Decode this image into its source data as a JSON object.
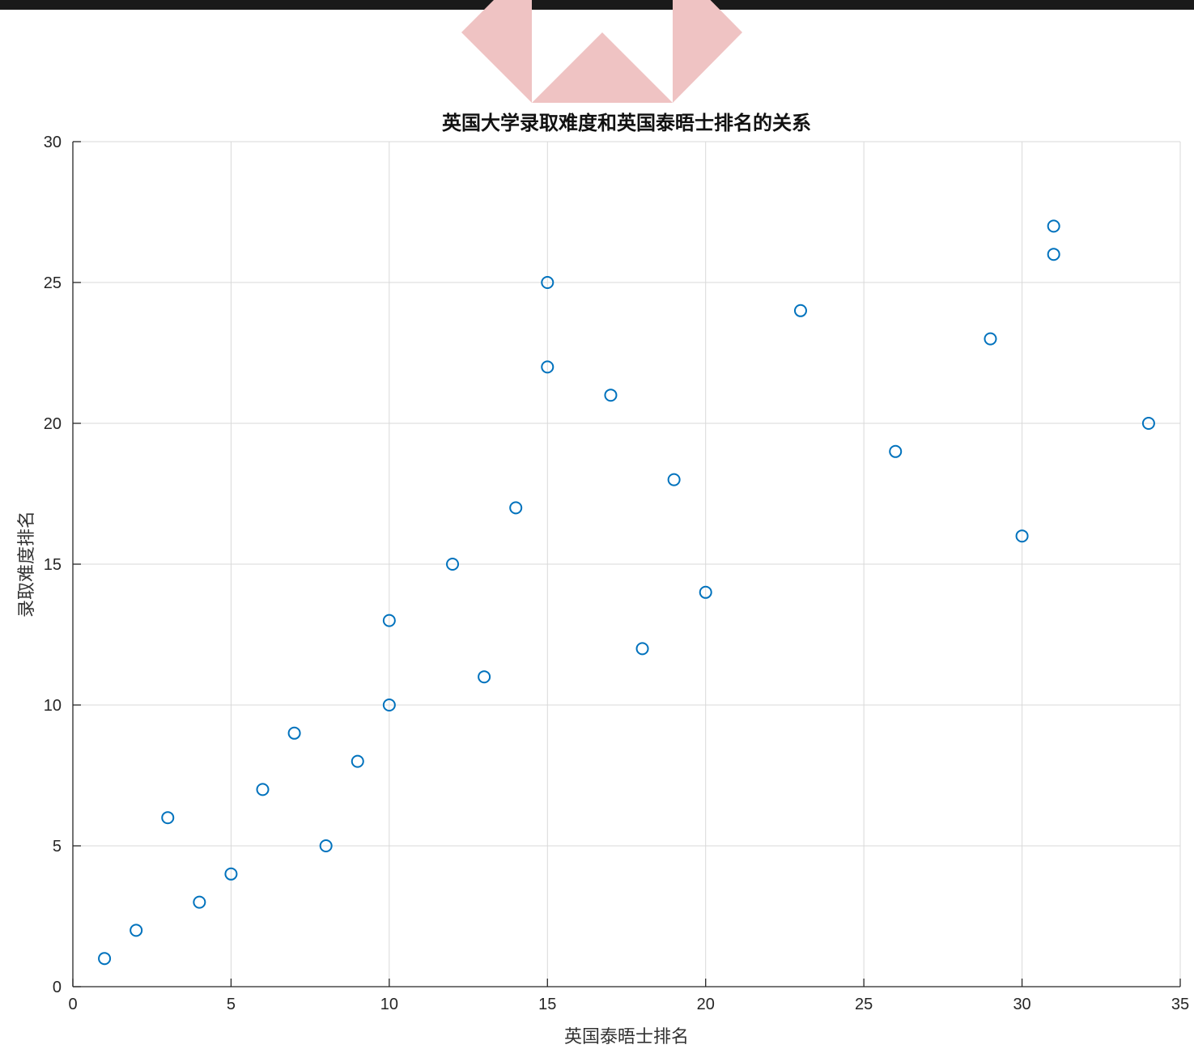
{
  "chart_data": {
    "type": "scatter",
    "title": "英国大学录取难度和英国泰晤士排名的关系",
    "xlabel": "英国泰晤士排名",
    "ylabel": "录取难度排名",
    "xlim": [
      0,
      35
    ],
    "ylim": [
      0,
      30
    ],
    "x_ticks": [
      "0",
      "5",
      "10",
      "15",
      "20",
      "25",
      "30",
      "35"
    ],
    "y_ticks": [
      "0",
      "5",
      "10",
      "15",
      "20",
      "25",
      "30"
    ],
    "grid": true,
    "marker": "circle-open",
    "points": [
      {
        "x": 1,
        "y": 1
      },
      {
        "x": 2,
        "y": 2
      },
      {
        "x": 3,
        "y": 6
      },
      {
        "x": 4,
        "y": 3
      },
      {
        "x": 5,
        "y": 4
      },
      {
        "x": 6,
        "y": 7
      },
      {
        "x": 7,
        "y": 9
      },
      {
        "x": 8,
        "y": 5
      },
      {
        "x": 9,
        "y": 8
      },
      {
        "x": 10,
        "y": 10
      },
      {
        "x": 10,
        "y": 13
      },
      {
        "x": 12,
        "y": 15
      },
      {
        "x": 13,
        "y": 11
      },
      {
        "x": 14,
        "y": 17
      },
      {
        "x": 15,
        "y": 22
      },
      {
        "x": 15,
        "y": 25
      },
      {
        "x": 17,
        "y": 21
      },
      {
        "x": 18,
        "y": 12
      },
      {
        "x": 19,
        "y": 18
      },
      {
        "x": 20,
        "y": 14
      },
      {
        "x": 23,
        "y": 24
      },
      {
        "x": 26,
        "y": 19
      },
      {
        "x": 29,
        "y": 23
      },
      {
        "x": 30,
        "y": 16
      },
      {
        "x": 31,
        "y": 26
      },
      {
        "x": 31,
        "y": 27
      },
      {
        "x": 34,
        "y": 20
      }
    ]
  },
  "colors": {
    "marker": "#0072bd",
    "grid": "#d9d9d9",
    "axis": "#262626",
    "watermark": "#efc3c3",
    "header_strip": "#1a1a1a"
  }
}
